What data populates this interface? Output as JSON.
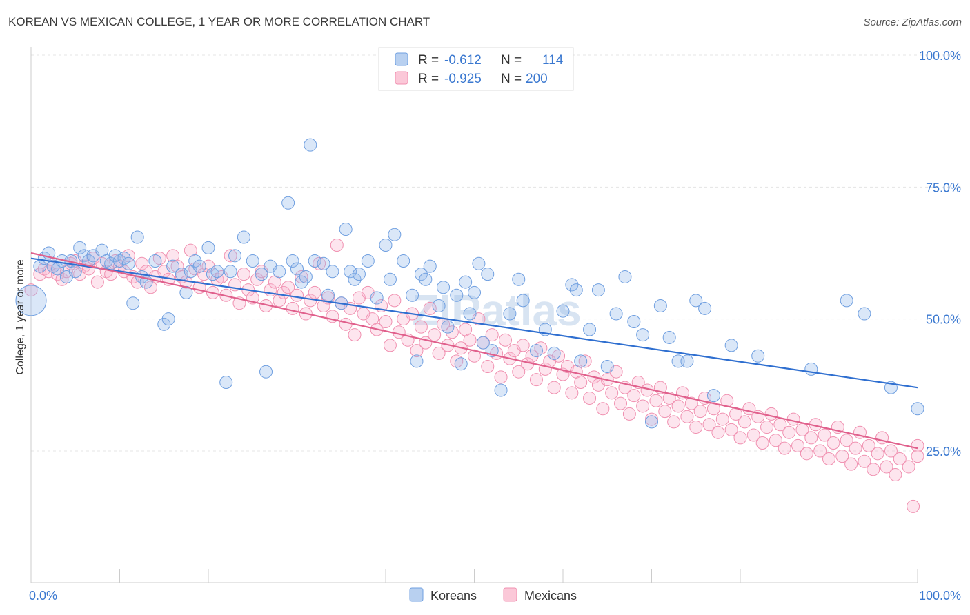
{
  "title": "KOREAN VS MEXICAN COLLEGE, 1 YEAR OR MORE CORRELATION CHART",
  "source": "Source: ZipAtlas.com",
  "watermark": "ZIPatlas",
  "colors": {
    "koreans": "#6f9fe0",
    "koreans_line": "#2f6fd0",
    "mexicans": "#f090b0",
    "mexicans_line": "#e0608c",
    "axis_text": "#3a78d0"
  },
  "legend": {
    "koreans": {
      "r_label": "R =",
      "r_value": "-0.612",
      "n_label": "N =",
      "n_value": "114"
    },
    "mexicans": {
      "r_label": "R =",
      "r_value": "-0.925",
      "n_label": "N =",
      "n_value": "200"
    }
  },
  "chart_data": {
    "type": "scatter",
    "title": "KOREAN VS MEXICAN COLLEGE, 1 YEAR OR MORE CORRELATION CHART",
    "xlabel": "",
    "ylabel": "College, 1 year or more",
    "xlim": [
      0,
      100
    ],
    "ylim": [
      0,
      100
    ],
    "x_tick_labels": [
      "0.0%",
      "100.0%"
    ],
    "y_tick_labels": [
      "25.0%",
      "50.0%",
      "75.0%",
      "100.0%"
    ],
    "y_ticks": [
      25,
      50,
      75,
      100
    ],
    "grid": true,
    "legend_position": "top-center",
    "bottom_legend": [
      "Koreans",
      "Mexicans"
    ],
    "series": [
      {
        "name": "Koreans",
        "trend": {
          "x": [
            0,
            100
          ],
          "y": [
            61.5,
            37.0
          ]
        },
        "points": [
          [
            0,
            53.5
          ],
          [
            1,
            60
          ],
          [
            1.5,
            61.5
          ],
          [
            2,
            62.5
          ],
          [
            2.5,
            60
          ],
          [
            3,
            59.5
          ],
          [
            3.5,
            61
          ],
          [
            4,
            58
          ],
          [
            4.5,
            61
          ],
          [
            5,
            59
          ],
          [
            5.5,
            63.5
          ],
          [
            6,
            62
          ],
          [
            6.5,
            61
          ],
          [
            7,
            62
          ],
          [
            8,
            63
          ],
          [
            8.5,
            61
          ],
          [
            9,
            60.5
          ],
          [
            9.5,
            62
          ],
          [
            10,
            61
          ],
          [
            10.5,
            61.5
          ],
          [
            11,
            60.5
          ],
          [
            11.5,
            53
          ],
          [
            12,
            65.5
          ],
          [
            12.5,
            58
          ],
          [
            13,
            57
          ],
          [
            14,
            61
          ],
          [
            15,
            49
          ],
          [
            15.5,
            50
          ],
          [
            16,
            60
          ],
          [
            17,
            58.5
          ],
          [
            17.5,
            55
          ],
          [
            18,
            59
          ],
          [
            18.5,
            61
          ],
          [
            19,
            60
          ],
          [
            20,
            63.5
          ],
          [
            20.5,
            58.5
          ],
          [
            21,
            59
          ],
          [
            22,
            38
          ],
          [
            22.5,
            59
          ],
          [
            23,
            62
          ],
          [
            24,
            65.5
          ],
          [
            25,
            61
          ],
          [
            26,
            58.5
          ],
          [
            26.5,
            40
          ],
          [
            27,
            60
          ],
          [
            28,
            59
          ],
          [
            29,
            72
          ],
          [
            29.5,
            61
          ],
          [
            30,
            59.5
          ],
          [
            30.5,
            57
          ],
          [
            31,
            58
          ],
          [
            32,
            61
          ],
          [
            33,
            60.5
          ],
          [
            33.5,
            54.5
          ],
          [
            34,
            59
          ],
          [
            35,
            53
          ],
          [
            35.5,
            67
          ],
          [
            36,
            59
          ],
          [
            36.5,
            57.5
          ],
          [
            37,
            58.5
          ],
          [
            38,
            61
          ],
          [
            39,
            54
          ],
          [
            40,
            64
          ],
          [
            40.5,
            57.5
          ],
          [
            41,
            66
          ],
          [
            42,
            61
          ],
          [
            43,
            54.5
          ],
          [
            43.5,
            42
          ],
          [
            44,
            58.5
          ],
          [
            44.5,
            57.5
          ],
          [
            45,
            60
          ],
          [
            31.5,
            83
          ],
          [
            46,
            52.5
          ],
          [
            46.5,
            56
          ],
          [
            47,
            48.5
          ],
          [
            48,
            54.5
          ],
          [
            48.5,
            41.5
          ],
          [
            49,
            57
          ],
          [
            49.5,
            51
          ],
          [
            50,
            55
          ],
          [
            50.5,
            60.5
          ],
          [
            51,
            45.5
          ],
          [
            51.5,
            58.5
          ],
          [
            52,
            44
          ],
          [
            53,
            36.5
          ],
          [
            54,
            51
          ],
          [
            55,
            57.5
          ],
          [
            55.5,
            53.5
          ],
          [
            57,
            44
          ],
          [
            58,
            48
          ],
          [
            59,
            43.5
          ],
          [
            60,
            51.5
          ],
          [
            61,
            56.5
          ],
          [
            61.5,
            55.5
          ],
          [
            62,
            42
          ],
          [
            63,
            48
          ],
          [
            64,
            55.5
          ],
          [
            65,
            41
          ],
          [
            66,
            51
          ],
          [
            67,
            58
          ],
          [
            68,
            49.5
          ],
          [
            69,
            47
          ],
          [
            70,
            30.5
          ],
          [
            71,
            52.5
          ],
          [
            72,
            46.5
          ],
          [
            73,
            42
          ],
          [
            74,
            42
          ],
          [
            75,
            53.5
          ],
          [
            76,
            52
          ],
          [
            77,
            35.5
          ],
          [
            79,
            45
          ],
          [
            82,
            43
          ],
          [
            88,
            40.5
          ],
          [
            92,
            53.5
          ],
          [
            94,
            51
          ],
          [
            97,
            37
          ],
          [
            100,
            33
          ]
        ]
      },
      {
        "name": "Mexicans",
        "trend": {
          "x": [
            0,
            100
          ],
          "y": [
            62.5,
            25.5
          ]
        },
        "points": [
          [
            0,
            55.5
          ],
          [
            1,
            58.5
          ],
          [
            1.5,
            59.5
          ],
          [
            2,
            59
          ],
          [
            2.5,
            60
          ],
          [
            3,
            58.5
          ],
          [
            3.5,
            57.5
          ],
          [
            4,
            59
          ],
          [
            4.5,
            60.5
          ],
          [
            5,
            61
          ],
          [
            5.5,
            58.5
          ],
          [
            6,
            60
          ],
          [
            6.5,
            59.5
          ],
          [
            7,
            61.5
          ],
          [
            7.5,
            57
          ],
          [
            8,
            60.5
          ],
          [
            8.5,
            59
          ],
          [
            9,
            58.5
          ],
          [
            9.5,
            61
          ],
          [
            10,
            60
          ],
          [
            10.5,
            59
          ],
          [
            11,
            62
          ],
          [
            11.5,
            58
          ],
          [
            12,
            57
          ],
          [
            12.5,
            60.5
          ],
          [
            13,
            59
          ],
          [
            13.5,
            56
          ],
          [
            14,
            58
          ],
          [
            14.5,
            61.5
          ],
          [
            15,
            59
          ],
          [
            15.5,
            57.5
          ],
          [
            16,
            62
          ],
          [
            16.5,
            60
          ],
          [
            17,
            58
          ],
          [
            17.5,
            57
          ],
          [
            18,
            63
          ],
          [
            18.5,
            59.5
          ],
          [
            19,
            56
          ],
          [
            19.5,
            58.5
          ],
          [
            20,
            60
          ],
          [
            20.5,
            55
          ],
          [
            21,
            57.5
          ],
          [
            21.5,
            58
          ],
          [
            22,
            54.5
          ],
          [
            22.5,
            62
          ],
          [
            23,
            56.5
          ],
          [
            23.5,
            53
          ],
          [
            24,
            58.5
          ],
          [
            24.5,
            55.5
          ],
          [
            25,
            54
          ],
          [
            25.5,
            57.5
          ],
          [
            26,
            59
          ],
          [
            26.5,
            52.5
          ],
          [
            27,
            55.5
          ],
          [
            27.5,
            57
          ],
          [
            28,
            53.5
          ],
          [
            28.5,
            55
          ],
          [
            29,
            56
          ],
          [
            29.5,
            52
          ],
          [
            30,
            54.5
          ],
          [
            30.5,
            58
          ],
          [
            31,
            51
          ],
          [
            31.5,
            53.5
          ],
          [
            32,
            55
          ],
          [
            32.5,
            60.5
          ],
          [
            33,
            52.5
          ],
          [
            33.5,
            54
          ],
          [
            34,
            50.5
          ],
          [
            34.5,
            64
          ],
          [
            35,
            53
          ],
          [
            35.5,
            49
          ],
          [
            36,
            52
          ],
          [
            36.5,
            47
          ],
          [
            37,
            54
          ],
          [
            37.5,
            51
          ],
          [
            38,
            55
          ],
          [
            38.5,
            50
          ],
          [
            39,
            48
          ],
          [
            39.5,
            52.5
          ],
          [
            40,
            49.5
          ],
          [
            40.5,
            45
          ],
          [
            41,
            53.5
          ],
          [
            41.5,
            47.5
          ],
          [
            42,
            50
          ],
          [
            42.5,
            46
          ],
          [
            43,
            51
          ],
          [
            43.5,
            44
          ],
          [
            44,
            48.5
          ],
          [
            44.5,
            45.5
          ],
          [
            45,
            52
          ],
          [
            45.5,
            47
          ],
          [
            46,
            43.5
          ],
          [
            46.5,
            49
          ],
          [
            47,
            45
          ],
          [
            47.5,
            47.5
          ],
          [
            48,
            42
          ],
          [
            48.5,
            44.5
          ],
          [
            49,
            48
          ],
          [
            49.5,
            46
          ],
          [
            50,
            43
          ],
          [
            50.5,
            50
          ],
          [
            51,
            45.5
          ],
          [
            51.5,
            41
          ],
          [
            52,
            47
          ],
          [
            52.5,
            43.5
          ],
          [
            53,
            39
          ],
          [
            53.5,
            46
          ],
          [
            54,
            42.5
          ],
          [
            54.5,
            44
          ],
          [
            55,
            40
          ],
          [
            55.5,
            45
          ],
          [
            56,
            41.5
          ],
          [
            56.5,
            43
          ],
          [
            57,
            38.5
          ],
          [
            57.5,
            44.5
          ],
          [
            58,
            40.5
          ],
          [
            58.5,
            42
          ],
          [
            59,
            37
          ],
          [
            59.5,
            43
          ],
          [
            60,
            39.5
          ],
          [
            60.5,
            41
          ],
          [
            61,
            36
          ],
          [
            61.5,
            40
          ],
          [
            62,
            38
          ],
          [
            62.5,
            42
          ],
          [
            63,
            35
          ],
          [
            63.5,
            39
          ],
          [
            64,
            37.5
          ],
          [
            64.5,
            33
          ],
          [
            65,
            38.5
          ],
          [
            65.5,
            36
          ],
          [
            66,
            40
          ],
          [
            66.5,
            34
          ],
          [
            67,
            37
          ],
          [
            67.5,
            32
          ],
          [
            68,
            35.5
          ],
          [
            68.5,
            38
          ],
          [
            69,
            33.5
          ],
          [
            69.5,
            36.5
          ],
          [
            70,
            31
          ],
          [
            70.5,
            34.5
          ],
          [
            71,
            37
          ],
          [
            71.5,
            32.5
          ],
          [
            72,
            35
          ],
          [
            72.5,
            30.5
          ],
          [
            73,
            33.5
          ],
          [
            73.5,
            36
          ],
          [
            74,
            31.5
          ],
          [
            74.5,
            34
          ],
          [
            75,
            29.5
          ],
          [
            75.5,
            32.5
          ],
          [
            76,
            35
          ],
          [
            76.5,
            30
          ],
          [
            77,
            33
          ],
          [
            77.5,
            28.5
          ],
          [
            78,
            31
          ],
          [
            78.5,
            34.5
          ],
          [
            79,
            29
          ],
          [
            79.5,
            32
          ],
          [
            80,
            27.5
          ],
          [
            80.5,
            30.5
          ],
          [
            81,
            33
          ],
          [
            81.5,
            28
          ],
          [
            82,
            31.5
          ],
          [
            82.5,
            26.5
          ],
          [
            83,
            29.5
          ],
          [
            83.5,
            32
          ],
          [
            84,
            27
          ],
          [
            84.5,
            30
          ],
          [
            85,
            25.5
          ],
          [
            85.5,
            28.5
          ],
          [
            86,
            31
          ],
          [
            86.5,
            26
          ],
          [
            87,
            29
          ],
          [
            87.5,
            24.5
          ],
          [
            88,
            27.5
          ],
          [
            88.5,
            30
          ],
          [
            89,
            25
          ],
          [
            89.5,
            28
          ],
          [
            90,
            23.5
          ],
          [
            90.5,
            26.5
          ],
          [
            91,
            29.5
          ],
          [
            91.5,
            24
          ],
          [
            92,
            27
          ],
          [
            92.5,
            22.5
          ],
          [
            93,
            25.5
          ],
          [
            93.5,
            28.5
          ],
          [
            94,
            23
          ],
          [
            94.5,
            26
          ],
          [
            95,
            21.5
          ],
          [
            95.5,
            24.5
          ],
          [
            96,
            27.5
          ],
          [
            96.5,
            22
          ],
          [
            97,
            25
          ],
          [
            97.5,
            20.5
          ],
          [
            98,
            23.5
          ],
          [
            99,
            22
          ],
          [
            99.5,
            14.5
          ],
          [
            100,
            26
          ],
          [
            100,
            24
          ]
        ]
      }
    ]
  }
}
